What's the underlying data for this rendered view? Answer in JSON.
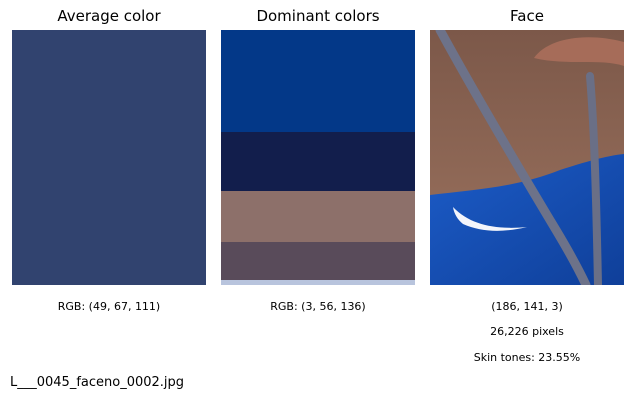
{
  "panels": {
    "average": {
      "title": "Average color",
      "caption": "RGB: (49, 67, 111)",
      "color": "#31436f"
    },
    "dominant": {
      "title": "Dominant colors",
      "caption": "RGB: (3, 56, 136)",
      "swatches": [
        {
          "color": "#033888",
          "fraction": 0.4
        },
        {
          "color": "#121e4c",
          "fraction": 0.23
        },
        {
          "color": "#8d706a",
          "fraction": 0.2
        },
        {
          "color": "#594b5a",
          "fraction": 0.15
        },
        {
          "color": "#b8c4dd",
          "fraction": 0.02
        }
      ]
    },
    "face": {
      "title": "Face",
      "rgb": "(186, 141, 3)",
      "pixels": "26,226 pixels",
      "skin": "Skin tones: 23.55%"
    }
  },
  "filename": "L___0045_faceno_0002.jpg"
}
